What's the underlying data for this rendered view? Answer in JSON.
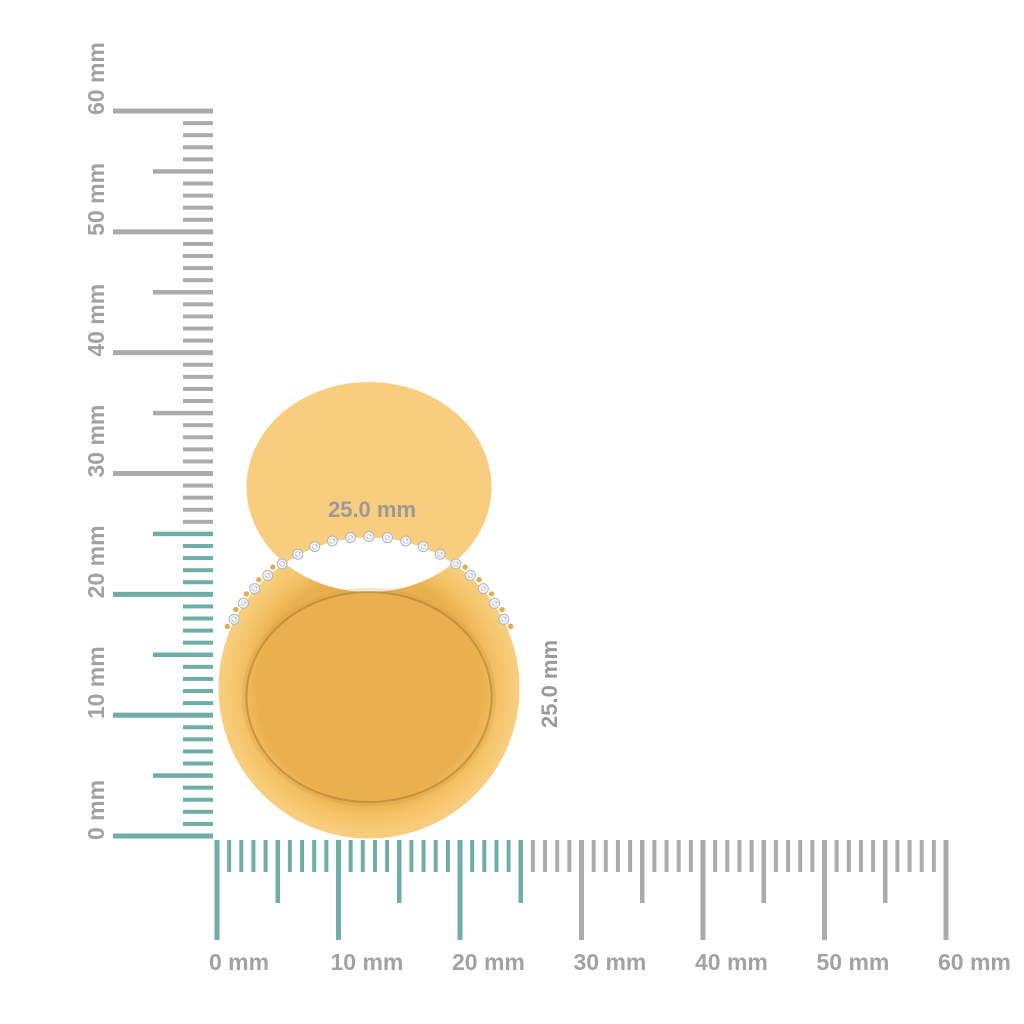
{
  "scene": {
    "unit": "mm",
    "rulers": {
      "min": 0,
      "max": 60,
      "minor_step": 1,
      "half_step": 5,
      "major_step": 10,
      "highlight_until": 25,
      "major_labels": [
        "0 mm",
        "10 mm",
        "20 mm",
        "30 mm",
        "40 mm",
        "50 mm",
        "60 mm"
      ]
    },
    "ring": {
      "name": "gold-diamond-ring-side-view",
      "width_label": "25.0 mm",
      "height_label": "25.0 mm",
      "stone_count": 19
    },
    "colors": {
      "background": "#FFFFFF",
      "tick_gray": "#ABABAB",
      "tick_teal": "#6FAEA7",
      "ruler_label": "#A2A2A2",
      "dimension_label": "#9A9A9A",
      "gold_light": "#F8CD7E",
      "gold_mid": "#F5C468",
      "gold_dark": "#EAB04E",
      "gold_edge": "#A8782E",
      "gold_soft_shadow": "#C8963C",
      "prong_gold": "#E9AE49",
      "prong_edge": "#D69B35",
      "diamond_fill": "#F3F5F7",
      "diamond_stroke": "#AFB6BD",
      "diamond_detail": "#C7CDD4",
      "diamond_speck": "#959DA6"
    }
  }
}
